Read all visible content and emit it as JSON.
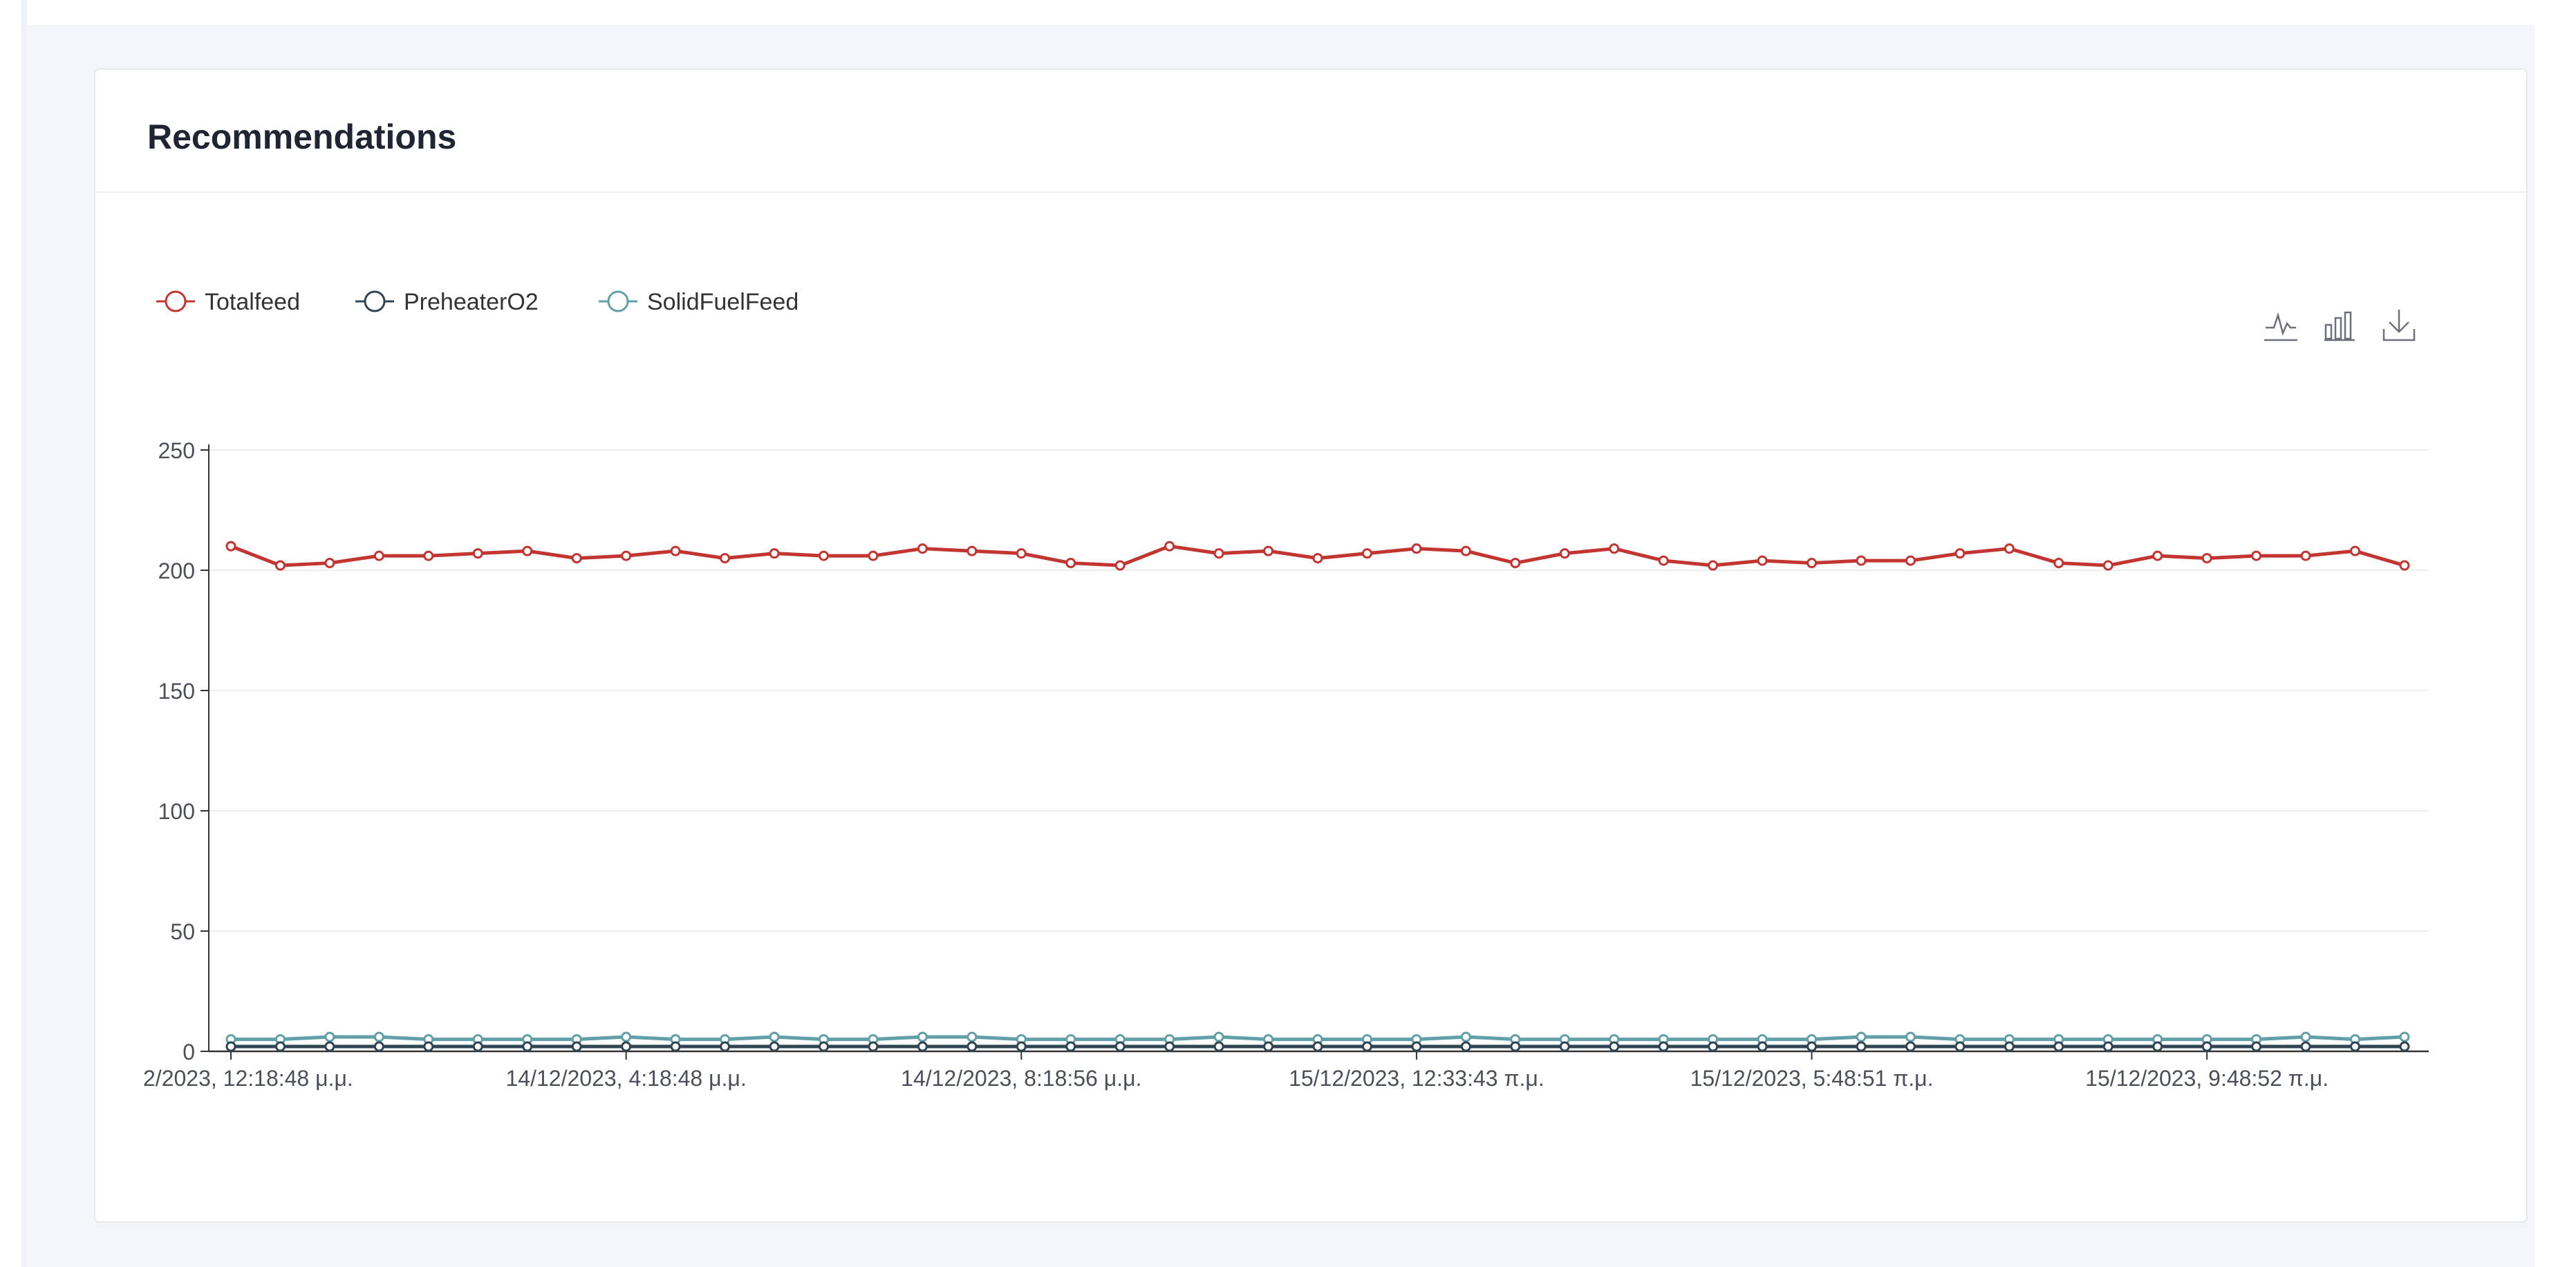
{
  "card": {
    "title": "Recommendations"
  },
  "toolbox": {
    "icons": [
      "line-chart-icon",
      "bar-chart-icon",
      "download-icon"
    ]
  },
  "chart_data": {
    "type": "line",
    "title": "",
    "xlabel": "",
    "ylabel": "",
    "ylim": [
      0,
      250
    ],
    "yticks": [
      0,
      50,
      100,
      150,
      200,
      250
    ],
    "grid": "horizontal",
    "legend_position": "top-left",
    "x_tick_labels": [
      {
        "index": 0,
        "label": "2/2023, 12:18:48 μ.μ."
      },
      {
        "index": 8,
        "label": "14/12/2023, 4:18:48 μ.μ."
      },
      {
        "index": 16,
        "label": "14/12/2023, 8:18:56 μ.μ."
      },
      {
        "index": 24,
        "label": "15/12/2023, 12:33:43 π.μ."
      },
      {
        "index": 32,
        "label": "15/12/2023, 5:48:51 π.μ."
      },
      {
        "index": 40,
        "label": "15/12/2023, 9:48:52 π.μ."
      }
    ],
    "series": [
      {
        "name": "Totalfeed",
        "color": "#c23531",
        "values": [
          210,
          202,
          203,
          206,
          206,
          207,
          208,
          205,
          206,
          208,
          205,
          207,
          206,
          206,
          209,
          208,
          207,
          203,
          202,
          210,
          207,
          208,
          205,
          207,
          209,
          208,
          203,
          207,
          209,
          204,
          202,
          204,
          203,
          204,
          204,
          207,
          209,
          203,
          202,
          206,
          205,
          206,
          206,
          208,
          202
        ]
      },
      {
        "name": "PreheaterO2",
        "color": "#2f4554",
        "values": [
          2,
          2,
          2,
          2,
          2,
          2,
          2,
          2,
          2,
          2,
          2,
          2,
          2,
          2,
          2,
          2,
          2,
          2,
          2,
          2,
          2,
          2,
          2,
          2,
          2,
          2,
          2,
          2,
          2,
          2,
          2,
          2,
          2,
          2,
          2,
          2,
          2,
          2,
          2,
          2,
          2,
          2,
          2,
          2,
          2
        ]
      },
      {
        "name": "SolidFuelFeed",
        "color": "#61a0a8",
        "values": [
          5,
          5,
          6,
          6,
          5,
          5,
          5,
          5,
          6,
          5,
          5,
          6,
          5,
          5,
          6,
          6,
          5,
          5,
          5,
          5,
          6,
          5,
          5,
          5,
          5,
          6,
          5,
          5,
          5,
          5,
          5,
          5,
          5,
          6,
          6,
          5,
          5,
          5,
          5,
          5,
          5,
          5,
          6,
          5,
          6
        ]
      }
    ]
  }
}
